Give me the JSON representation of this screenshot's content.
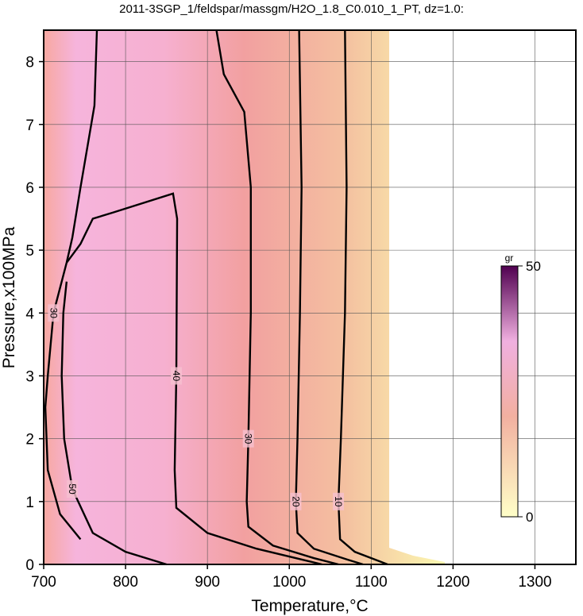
{
  "chart_data": {
    "type": "contour",
    "title": "2011-3SGP_1/feldspar/massgm/H2O_1.8_C0.010_1_PT, dz=1.0:",
    "xlabel": "Temperature,°C",
    "ylabel": "Pressure,x100MPa",
    "xlim": [
      700,
      1350
    ],
    "ylim": [
      0,
      8.5
    ],
    "xticks": [
      700,
      800,
      900,
      1000,
      1100,
      1200,
      1300
    ],
    "yticks": [
      0,
      1,
      2,
      3,
      4,
      5,
      6,
      7,
      8
    ],
    "grid": true,
    "colorbar": {
      "label": "gr",
      "lim": [
        0,
        50
      ],
      "ticks": [
        0,
        50
      ]
    },
    "contours": [
      {
        "level": 10,
        "x": [
          1068,
          1070,
          1068,
          1063,
          1060,
          1062,
          1080,
          1110,
          1120
        ],
        "y": [
          8.5,
          6,
          4,
          2,
          1,
          0.4,
          0.2,
          0.05,
          0
        ]
      },
      {
        "level": 20,
        "x": [
          1012,
          1015,
          1013,
          1010,
          1008,
          1010,
          1030,
          1070,
          1090
        ],
        "y": [
          8.5,
          6,
          4,
          2,
          1,
          0.5,
          0.25,
          0.08,
          0
        ]
      },
      {
        "level": 30,
        "x": [
          911,
          920,
          945,
          953,
          953,
          950,
          948,
          950,
          980,
          1030,
          1060
        ],
        "y": [
          8.5,
          7.8,
          7.2,
          6,
          4,
          2,
          1,
          0.6,
          0.3,
          0.1,
          0
        ]
      },
      {
        "level": 40,
        "x": [
          728,
          745,
          760,
          785,
          858,
          863,
          862,
          860,
          862,
          900,
          960,
          1040
        ],
        "y": [
          4.8,
          5.1,
          5.5,
          5.6,
          5.9,
          5.5,
          3,
          1.5,
          0.9,
          0.5,
          0.25,
          0
        ]
      },
      {
        "level": 50,
        "x": [
          728,
          724,
          722,
          725,
          735,
          760,
          800,
          850
        ],
        "y": [
          4.5,
          4,
          3,
          2,
          1.2,
          0.5,
          0.2,
          0
        ]
      },
      {
        "level": 30,
        "x": [
          765,
          762,
          745,
          735,
          728,
          712,
          705,
          702,
          705,
          720,
          745
        ],
        "y": [
          8.5,
          7.3,
          6,
          5.2,
          4.8,
          4,
          3,
          2.5,
          1.5,
          0.8,
          0.4
        ]
      }
    ]
  }
}
